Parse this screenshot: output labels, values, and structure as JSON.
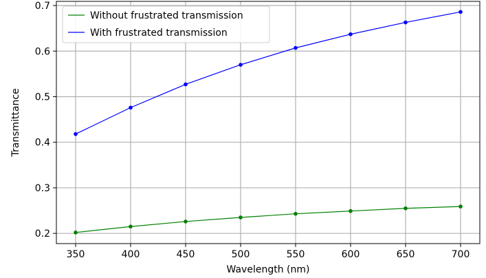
{
  "chart_data": {
    "type": "line",
    "title": "",
    "xlabel": "Wavelength (nm)",
    "ylabel": "Transmittance",
    "x": [
      350,
      400,
      450,
      500,
      550,
      600,
      650,
      700
    ],
    "xticks": [
      "350",
      "400",
      "450",
      "500",
      "550",
      "600",
      "650",
      "700"
    ],
    "yticks": [
      "0.2",
      "0.3",
      "0.4",
      "0.5",
      "0.6",
      "0.7"
    ],
    "xlim": [
      332.5,
      717.5
    ],
    "ylim": [
      0.1776,
      0.7091
    ],
    "grid": true,
    "legend_position": "top-left",
    "series": [
      {
        "name": "Without frustrated transmission",
        "color": "#008000",
        "values": [
          0.202,
          0.215,
          0.226,
          0.235,
          0.243,
          0.249,
          0.255,
          0.259
        ]
      },
      {
        "name": "With frustrated transmission",
        "color": "#0000ff",
        "values": [
          0.418,
          0.476,
          0.527,
          0.57,
          0.607,
          0.637,
          0.663,
          0.686
        ]
      }
    ]
  }
}
